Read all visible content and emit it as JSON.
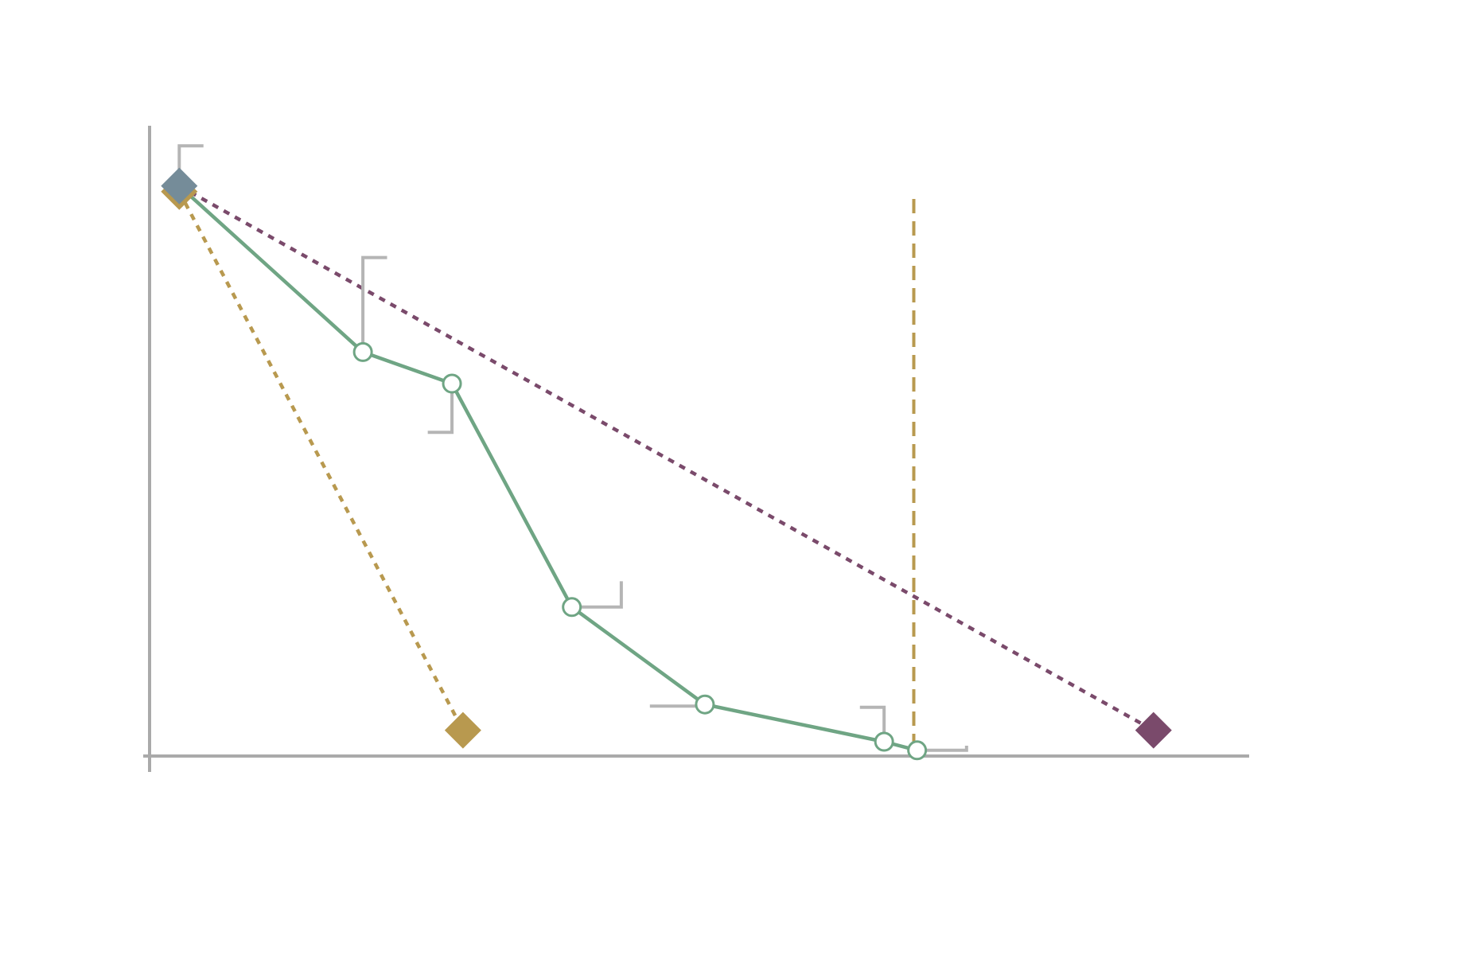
{
  "chart_data": {
    "type": "line",
    "title": "",
    "xlabel": "",
    "ylabel": "",
    "xlim": [
      0,
      1
    ],
    "ylim": [
      0,
      1
    ],
    "grid": false,
    "legend": "none",
    "colors": {
      "axis": "#aaaaaa",
      "curve": "#6fa584",
      "gold": "#b8994f",
      "purple": "#7a4a6b",
      "slate": "#758c99",
      "callout": "#b5b5b5"
    },
    "curve": {
      "points": [
        {
          "x": 0.027,
          "y": 0.995
        },
        {
          "x": 0.194,
          "y": 0.705
        },
        {
          "x": 0.275,
          "y": 0.65
        },
        {
          "x": 0.384,
          "y": 0.26
        },
        {
          "x": 0.505,
          "y": 0.09
        },
        {
          "x": 0.668,
          "y": 0.025
        },
        {
          "x": 0.698,
          "y": 0.01
        }
      ]
    },
    "callouts": [
      {
        "x": 0.027,
        "y": 0.995,
        "dir": "up-right",
        "len_x": 0.022,
        "len_y": 0.07
      },
      {
        "x": 0.194,
        "y": 0.705,
        "dir": "up-right",
        "len_x": 0.022,
        "len_y": 0.165
      },
      {
        "x": 0.275,
        "y": 0.65,
        "dir": "down-left",
        "len_x": 0.022,
        "len_y": 0.085
      },
      {
        "x": 0.384,
        "y": 0.26,
        "dir": "right-up",
        "len_x": 0.045,
        "len_y": 0.045
      },
      {
        "x": 0.505,
        "y": 0.09,
        "dir": "left",
        "len_x": 0.05,
        "len_y": 0.0
      },
      {
        "x": 0.668,
        "y": 0.025,
        "dir": "up-left",
        "len_x": 0.022,
        "len_y": 0.06
      },
      {
        "x": 0.698,
        "y": 0.01,
        "dir": "right-up",
        "len_x": 0.045,
        "len_y": 0.008
      }
    ],
    "markers": [
      {
        "x": 0.027,
        "y": 0.995,
        "color": "slate"
      },
      {
        "x": 0.027,
        "y": 0.985,
        "color": "gold"
      },
      {
        "x": 0.285,
        "y": 0.045,
        "color": "gold"
      },
      {
        "x": 0.913,
        "y": 0.045,
        "color": "purple"
      }
    ],
    "reference_lines": [
      {
        "x1": 0.027,
        "y1": 0.985,
        "x2": 0.285,
        "y2": 0.045,
        "color": "gold",
        "style": "dotted"
      },
      {
        "x1": 0.027,
        "y1": 0.995,
        "x2": 0.913,
        "y2": 0.045,
        "color": "purple",
        "style": "dotted"
      }
    ],
    "vertical_line": {
      "x": 0.695,
      "y_from": 0.0,
      "y_to": 1.0,
      "color": "gold",
      "style": "dashed"
    }
  }
}
